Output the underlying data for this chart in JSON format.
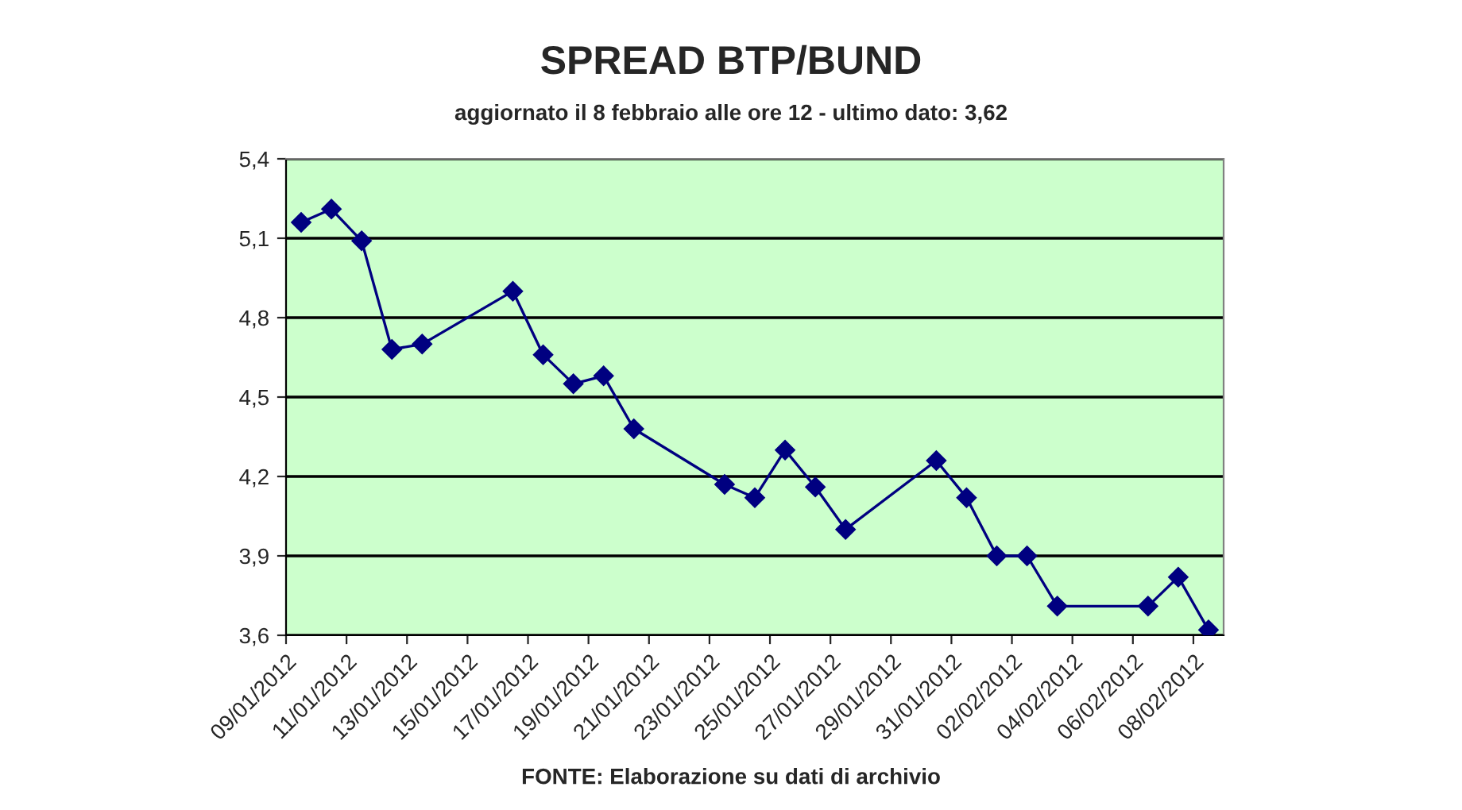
{
  "chart_data": {
    "type": "line",
    "title": "SPREAD BTP/BUND",
    "subtitle": "aggiornato il 8 febbraio alle ore 12 - ultimo dato: 3,62",
    "annotations": [
      "FONTE: Elaborazione su dati di archivio"
    ],
    "x": [
      "2012-01-09",
      "2012-01-10",
      "2012-01-11",
      "2012-01-12",
      "2012-01-13",
      "2012-01-16",
      "2012-01-17",
      "2012-01-18",
      "2012-01-19",
      "2012-01-20",
      "2012-01-23",
      "2012-01-24",
      "2012-01-25",
      "2012-01-26",
      "2012-01-27",
      "2012-01-30",
      "2012-01-31",
      "2012-02-01",
      "2012-02-02",
      "2012-02-03",
      "2012-02-06",
      "2012-02-07",
      "2012-02-08"
    ],
    "series": [
      {
        "color": "#000080",
        "values": [
          5.16,
          5.21,
          5.09,
          4.68,
          4.7,
          4.9,
          4.66,
          4.55,
          4.58,
          4.38,
          4.17,
          4.12,
          4.3,
          4.16,
          4.0,
          4.26,
          4.12,
          3.9,
          3.9,
          3.71,
          3.71,
          3.82,
          3.62
        ]
      }
    ],
    "xlim": [
      "2012-01-08T12:00",
      "2012-02-08T12:00"
    ],
    "xticks": [
      {
        "value": "2012-01-08T12:00",
        "label": "09/01/2012"
      },
      {
        "value": "2012-01-10T12:00",
        "label": "11/01/2012"
      },
      {
        "value": "2012-01-12T12:00",
        "label": "13/01/2012"
      },
      {
        "value": "2012-01-14T12:00",
        "label": "15/01/2012"
      },
      {
        "value": "2012-01-16T12:00",
        "label": "17/01/2012"
      },
      {
        "value": "2012-01-18T12:00",
        "label": "19/01/2012"
      },
      {
        "value": "2012-01-20T12:00",
        "label": "21/01/2012"
      },
      {
        "value": "2012-01-22T12:00",
        "label": "23/01/2012"
      },
      {
        "value": "2012-01-24T12:00",
        "label": "25/01/2012"
      },
      {
        "value": "2012-01-26T12:00",
        "label": "27/01/2012"
      },
      {
        "value": "2012-01-28T12:00",
        "label": "29/01/2012"
      },
      {
        "value": "2012-01-30T12:00",
        "label": "31/01/2012"
      },
      {
        "value": "2012-02-01T12:00",
        "label": "02/02/2012"
      },
      {
        "value": "2012-02-03T12:00",
        "label": "04/02/2012"
      },
      {
        "value": "2012-02-05T12:00",
        "label": "06/02/2012"
      },
      {
        "value": "2012-02-07T12:00",
        "label": "08/02/2012"
      }
    ],
    "ylim": [
      3.6,
      5.4
    ],
    "yticks": [
      {
        "value": 3.6,
        "label": "3,6"
      },
      {
        "value": 3.9,
        "label": "3,9"
      },
      {
        "value": 4.2,
        "label": "4,2"
      },
      {
        "value": 4.5,
        "label": "4,5"
      },
      {
        "value": 4.8,
        "label": "4,8"
      },
      {
        "value": 5.1,
        "label": "5,1"
      },
      {
        "value": 5.4,
        "label": "5,4"
      }
    ],
    "grid": "y",
    "marker": "diamond",
    "line_style": "solid",
    "legend": false
  }
}
